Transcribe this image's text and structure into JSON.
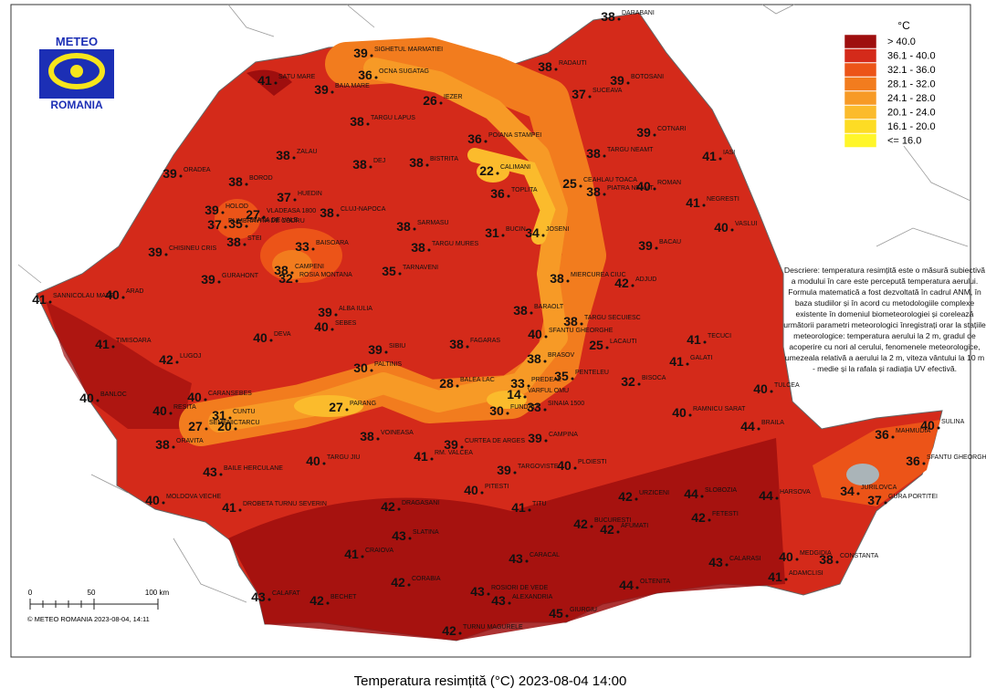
{
  "logo": {
    "top": "METEO",
    "bottom": "ROMANIA"
  },
  "legend": {
    "unit": "°C",
    "classes": [
      {
        "label": "> 40.0",
        "color": "#9e0e0e"
      },
      {
        "label": "36.1 - 40.0",
        "color": "#d42a1a"
      },
      {
        "label": "32.1 - 36.0",
        "color": "#ec5418"
      },
      {
        "label": "28.1 - 32.0",
        "color": "#f27c1e"
      },
      {
        "label": "24.1 - 28.0",
        "color": "#f79a26"
      },
      {
        "label": "20.1 - 24.0",
        "color": "#fbbb2c"
      },
      {
        "label": "16.1 - 20.0",
        "color": "#fddc24"
      },
      {
        "label": "<= 16.0",
        "color": "#fff62a"
      }
    ]
  },
  "description": "Descriere: temperatura resimțită este o măsură subiectivă a modului în care este percepută temperatura aerului. Formula matematică a fost dezvoltată în cadrul ANM, în baza studiilor și în acord cu metodologiile complexe existente în domeniul biometeorologiei și corelează următorii parametri meteorologici înregistrați orar la stațiile meteorologice: temperatura aerului la 2 m, gradul de acoperire cu nori al cerului, fenomenele meteorologice, umezeala relativă a aerului la 2 m, viteza vântului la 10 m - medie și la rafala și radiația UV efectivă.",
  "scale": {
    "labels": [
      "0",
      "50",
      "100 km"
    ]
  },
  "copyright": "© METEO ROMANIA 2023-08-04, 14:11",
  "title": "Temperatura resimțită (°C) 2023-08-04 14:00",
  "stations": [
    {
      "name": "DARABANI",
      "value": 38
    },
    {
      "name": "SIGHETUL MARMATIEI",
      "value": 39
    },
    {
      "name": "OCNA SUGATAG",
      "value": 36
    },
    {
      "name": "SATU MARE",
      "value": 41
    },
    {
      "name": "BAIA MARE",
      "value": 39
    },
    {
      "name": "RADAUTI",
      "value": 38
    },
    {
      "name": "BOTOSANI",
      "value": 39
    },
    {
      "name": "SUCEAVA",
      "value": 37
    },
    {
      "name": "IEZER",
      "value": 26
    },
    {
      "name": "TARGU LAPUS",
      "value": 38
    },
    {
      "name": "POIANA STAMPEI",
      "value": 36
    },
    {
      "name": "COTNARI",
      "value": 39
    },
    {
      "name": "ZALAU",
      "value": 38
    },
    {
      "name": "DEJ",
      "value": 38
    },
    {
      "name": "BISTRITA",
      "value": 38
    },
    {
      "name": "CALIMANI",
      "value": 22
    },
    {
      "name": "TARGU NEAMT",
      "value": 38
    },
    {
      "name": "IASI",
      "value": 41
    },
    {
      "name": "ORADEA",
      "value": 39
    },
    {
      "name": "BOROD",
      "value": 38
    },
    {
      "name": "VLADEASA 1800",
      "value": 27
    },
    {
      "name": "HUEDIN",
      "value": 37
    },
    {
      "name": "TOPLITA",
      "value": 36
    },
    {
      "name": "CEAHLAU TOACA",
      "value": 25
    },
    {
      "name": "PIATRA NEAMT",
      "value": 38
    },
    {
      "name": "ROMAN",
      "value": 40
    },
    {
      "name": "NEGRESTI",
      "value": 41
    },
    {
      "name": "HOLOD",
      "value": 39
    },
    {
      "name": "CLUJ-NAPOCA",
      "value": 38
    },
    {
      "name": "SARMASU",
      "value": 38
    },
    {
      "name": "VASLUI",
      "value": 40
    },
    {
      "name": "DUMBRAVITA DE CODRU",
      "value": 37
    },
    {
      "name": "STANA DE VALE",
      "value": 35
    },
    {
      "name": "BUCIN",
      "value": 31
    },
    {
      "name": "JOSENI",
      "value": 34
    },
    {
      "name": "CHISINEU CRIS",
      "value": 39
    },
    {
      "name": "STEI",
      "value": 38
    },
    {
      "name": "BAISOARA",
      "value": 33
    },
    {
      "name": "TARGU MURES",
      "value": 38
    },
    {
      "name": "BACAU",
      "value": 39
    },
    {
      "name": "CAMPENI",
      "value": 38
    },
    {
      "name": "ROSIA MONTANA",
      "value": 32
    },
    {
      "name": "TARNAVENI",
      "value": 35
    },
    {
      "name": "MIERCUREA CIUC",
      "value": 38
    },
    {
      "name": "SANNICOLAU MARE",
      "value": 41
    },
    {
      "name": "ARAD",
      "value": 40
    },
    {
      "name": "GURAHONT",
      "value": 39
    },
    {
      "name": "ADJUD",
      "value": 42
    },
    {
      "name": "ALBA IULIA",
      "value": 39
    },
    {
      "name": "SEBES",
      "value": 40
    },
    {
      "name": "BARAOLT",
      "value": 38
    },
    {
      "name": "TARGU SECUIESC",
      "value": 38
    },
    {
      "name": "SFANTU GHEORGHE",
      "value": 40
    },
    {
      "name": "TIMISOARA",
      "value": 41
    },
    {
      "name": "DEVA",
      "value": 40
    },
    {
      "name": "SIBIU",
      "value": 39
    },
    {
      "name": "FAGARAS",
      "value": 38
    },
    {
      "name": "LACAUTI",
      "value": 25
    },
    {
      "name": "TECUCI",
      "value": 41
    },
    {
      "name": "LUGOJ",
      "value": 42
    },
    {
      "name": "PALTINIS",
      "value": 30
    },
    {
      "name": "BRASOV",
      "value": 38
    },
    {
      "name": "GALATI",
      "value": 41
    },
    {
      "name": "BALEA LAC",
      "value": 28
    },
    {
      "name": "VARFUL OMU",
      "value": 14
    },
    {
      "name": "PREDEAL",
      "value": 33
    },
    {
      "name": "PENTELEU",
      "value": 35
    },
    {
      "name": "BISOCA",
      "value": 32
    },
    {
      "name": "TULCEA",
      "value": 40
    },
    {
      "name": "BANLOC",
      "value": 40
    },
    {
      "name": "CARANSEBES",
      "value": 40
    },
    {
      "name": "FUNDATA",
      "value": 30
    },
    {
      "name": "SINAIA 1500",
      "value": 33
    },
    {
      "name": "PARANG",
      "value": 27
    },
    {
      "name": "CUNTU",
      "value": 31
    },
    {
      "name": "TARCU",
      "value": 20
    },
    {
      "name": "RESITA",
      "value": 40
    },
    {
      "name": "SEMENIC",
      "value": 27
    },
    {
      "name": "RAMNICU SARAT",
      "value": 40
    },
    {
      "name": "CAMPINA",
      "value": 39
    },
    {
      "name": "ORAVITA",
      "value": 38
    },
    {
      "name": "VOINEASA",
      "value": 38
    },
    {
      "name": "CURTEA DE ARGES",
      "value": 39
    },
    {
      "name": "RM. VALCEA",
      "value": 41
    },
    {
      "name": "TARGU JIU",
      "value": 40
    },
    {
      "name": "BAILE HERCULANE",
      "value": 43
    },
    {
      "name": "SULINA",
      "value": 40
    },
    {
      "name": "JURILOVCA",
      "value": 34
    },
    {
      "name": "GURA PORTITEI",
      "value": 37
    },
    {
      "name": "SFANTU GHEORGHE",
      "value": 36
    },
    {
      "name": "MAHMUDIA",
      "value": 36
    },
    {
      "name": "MOLDOVA VECHE",
      "value": 40
    },
    {
      "name": "DROBETA TURNU SEVERIN",
      "value": 41
    },
    {
      "name": "TARGOVISTE",
      "value": 39
    },
    {
      "name": "PLOIESTI",
      "value": 40
    },
    {
      "name": "PITESTI",
      "value": 40
    },
    {
      "name": "URZICENI",
      "value": 42
    },
    {
      "name": "SLOBOZIA",
      "value": 44
    },
    {
      "name": "BRAILA",
      "value": 44
    },
    {
      "name": "HARSOVA",
      "value": 44
    },
    {
      "name": "DRAGASANI",
      "value": 42
    },
    {
      "name": "TITU",
      "value": 41
    },
    {
      "name": "SLATINA",
      "value": 43
    },
    {
      "name": "BUCURESTI",
      "value": 42
    },
    {
      "name": "AFUMATI",
      "value": 42
    },
    {
      "name": "FETESTI",
      "value": 42
    },
    {
      "name": "CRAIOVA",
      "value": 41
    },
    {
      "name": "CARACAL",
      "value": 43
    },
    {
      "name": "ALEXANDRIA",
      "value": 43
    },
    {
      "name": "OLTENITA",
      "value": 44
    },
    {
      "name": "CALARASI",
      "value": 43
    },
    {
      "name": "MEDGIDIA",
      "value": 40
    },
    {
      "name": "CONSTANTA",
      "value": 38
    },
    {
      "name": "ADAMCLISI",
      "value": 41
    },
    {
      "name": "CALAFAT",
      "value": 43
    },
    {
      "name": "BECHET",
      "value": 42
    },
    {
      "name": "CORABIA",
      "value": 42
    },
    {
      "name": "TURNU MAGURELE",
      "value": 42
    },
    {
      "name": "GIURGIU",
      "value": 45
    },
    {
      "name": "ROSIORI DE VEDE",
      "value": 43
    }
  ]
}
